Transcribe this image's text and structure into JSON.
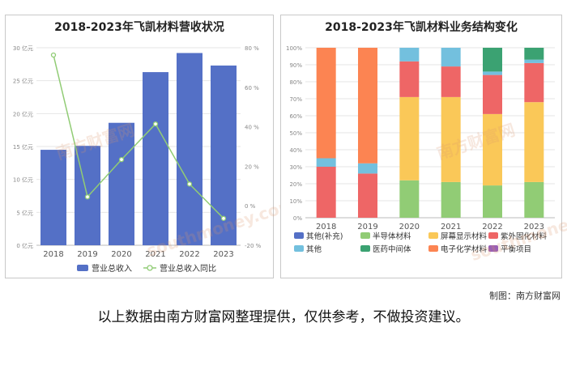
{
  "left_chart": {
    "title": "2018-2023年飞凯材料营收状况"
  },
  "right_chart": {
    "title": "2018-2023年飞凯材料业务结构变化"
  },
  "watermark": {
    "cn": "南方财富网",
    "en": "southmoney.com"
  },
  "footer": {
    "credit": "制图：南方财富网",
    "disclaimer": "以上数据由南方财富网整理提供，仅供参考，不做投资建议。"
  },
  "chart_data": [
    {
      "type": "bar",
      "title": "2018-2023年飞凯材料营收状况",
      "categories": [
        "2018",
        "2019",
        "2020",
        "2021",
        "2022",
        "2023"
      ],
      "y_ticks": [
        "0 亿元",
        "5 亿元",
        "10 亿元",
        "15 亿元",
        "20 亿元",
        "25 亿元",
        "30 亿元"
      ],
      "y2_ticks": [
        "-20 %",
        "0 %",
        "20 %",
        "40 %",
        "60 %",
        "80 %"
      ],
      "ylim": [
        0,
        30
      ],
      "y2lim": [
        -20,
        80
      ],
      "series": [
        {
          "name": "营业总收入",
          "type": "bar",
          "color": "#5470c6",
          "values": [
            14.5,
            15.1,
            18.6,
            26.3,
            29.2,
            27.3
          ]
        },
        {
          "name": "营业总收入同比",
          "type": "line",
          "axis": "right",
          "color": "#91cc75",
          "values": [
            76.3,
            4.5,
            23.4,
            41.4,
            11.0,
            -6.4
          ]
        }
      ],
      "legend": "bottom",
      "grid": true
    },
    {
      "type": "bar",
      "stacked": true,
      "title": "2018-2023年飞凯材料业务结构变化",
      "categories": [
        "2018",
        "2019",
        "2020",
        "2021",
        "2022",
        "2023"
      ],
      "y_ticks": [
        "0%",
        "10%",
        "20%",
        "30%",
        "40%",
        "50%",
        "60%",
        "70%",
        "80%",
        "90%",
        "100%"
      ],
      "ylim": [
        0,
        100
      ],
      "series": [
        {
          "name": "其他(补充)",
          "color": "#5470c6",
          "values": [
            0,
            0,
            0,
            0,
            0,
            0
          ]
        },
        {
          "name": "半导体材料",
          "color": "#91cc75",
          "values": [
            0,
            0,
            22,
            21,
            19,
            21
          ]
        },
        {
          "name": "屏幕显示材料",
          "color": "#fac858",
          "values": [
            0,
            0,
            49,
            50,
            42,
            47
          ]
        },
        {
          "name": "紫外固化材料",
          "color": "#ee6666",
          "values": [
            30,
            26,
            21,
            18,
            23,
            23
          ]
        },
        {
          "name": "其他",
          "color": "#73c0de",
          "values": [
            5,
            6,
            8,
            11,
            2,
            2
          ]
        },
        {
          "name": "医药中间体",
          "color": "#3ba272",
          "values": [
            0,
            0,
            0,
            0,
            14,
            7
          ]
        },
        {
          "name": "电子化学材料",
          "color": "#fc8452",
          "values": [
            65,
            68,
            0,
            0,
            0,
            0
          ]
        },
        {
          "name": "平衡项目",
          "color": "#9a60b4",
          "values": [
            0,
            0,
            0,
            0,
            0,
            0
          ]
        }
      ],
      "legend": "bottom",
      "grid": true
    }
  ]
}
